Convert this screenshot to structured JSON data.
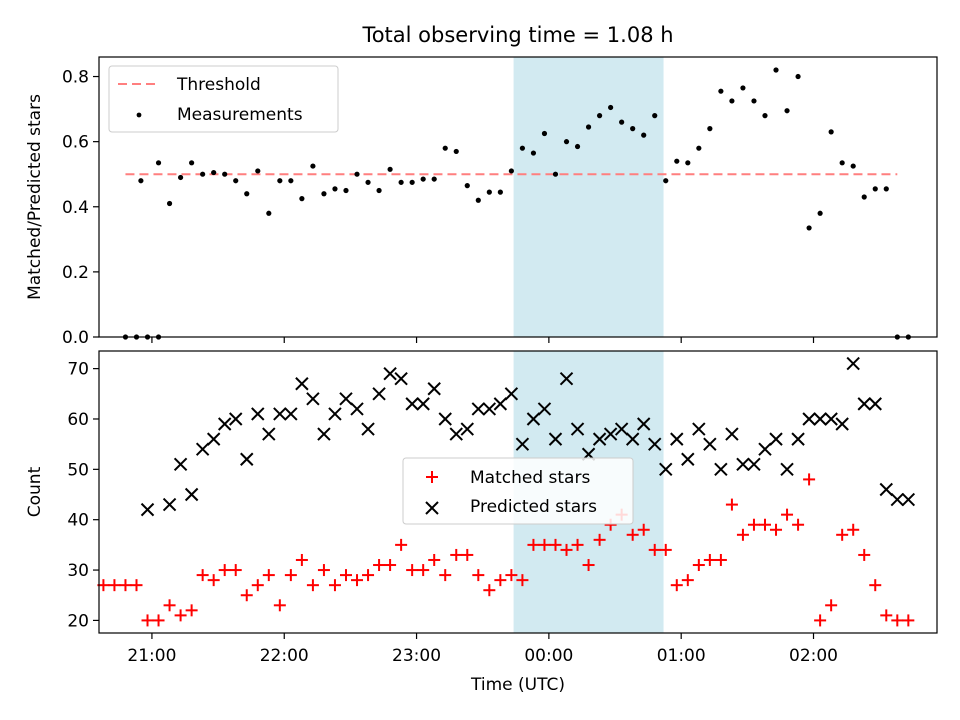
{
  "title": "Total observing time = 1.08 h",
  "chart_data": [
    {
      "type": "scatter",
      "panel": "top",
      "xlabel": "",
      "ylabel": "Matched/Predicted stars",
      "xlim": [
        "20:36",
        "02:56"
      ],
      "ylim": [
        0,
        0.86
      ],
      "yticks": [
        0.0,
        0.2,
        0.4,
        0.6,
        0.8
      ],
      "ytick_labels": [
        "0.0",
        "0.2",
        "0.4",
        "0.6",
        "0.8"
      ],
      "grid": false,
      "legend_position": "top-left",
      "legend": [
        {
          "label": "Threshold",
          "style": "dashed-line",
          "color": "#ff7f7f"
        },
        {
          "label": "Measurements",
          "style": "dot",
          "color": "#000000"
        }
      ],
      "highlight_span": {
        "x": [
          "23:44",
          "00:52"
        ],
        "color": "#add8e6"
      },
      "threshold": {
        "name": "Threshold",
        "x": [
          "20:48",
          "02:38"
        ],
        "y": 0.5
      },
      "series": [
        {
          "name": "Measurements",
          "x": [
            "20:48",
            "20:53",
            "20:58",
            "21:03",
            "20:55",
            "21:03",
            "21:08",
            "21:13",
            "21:18",
            "21:23",
            "21:28",
            "21:33",
            "21:38",
            "21:43",
            "21:48",
            "21:53",
            "21:58",
            "22:03",
            "22:08",
            "22:13",
            "22:18",
            "22:23",
            "22:28",
            "22:33",
            "22:38",
            "22:43",
            "22:48",
            "22:53",
            "22:58",
            "23:03",
            "23:08",
            "23:13",
            "23:18",
            "23:23",
            "23:28",
            "23:33",
            "23:38",
            "23:43",
            "23:48",
            "23:53",
            "23:58",
            "00:03",
            "00:08",
            "00:13",
            "00:18",
            "00:23",
            "00:28",
            "00:33",
            "00:38",
            "00:43",
            "00:48",
            "00:53",
            "00:58",
            "01:03",
            "01:08",
            "01:13",
            "01:18",
            "01:23",
            "01:28",
            "01:33",
            "01:38",
            "01:43",
            "01:48",
            "01:53",
            "01:58",
            "02:03",
            "02:08",
            "02:13",
            "02:18",
            "02:23",
            "02:28",
            "02:33",
            "02:38",
            "02:43"
          ],
          "y": [
            0.0,
            0.0,
            0.0,
            0.0,
            0.48,
            0.535,
            0.41,
            0.49,
            0.535,
            0.5,
            0.505,
            0.5,
            0.48,
            0.44,
            0.51,
            0.38,
            0.48,
            0.48,
            0.425,
            0.525,
            0.44,
            0.455,
            0.45,
            0.5,
            0.475,
            0.45,
            0.515,
            0.475,
            0.475,
            0.485,
            0.485,
            0.58,
            0.57,
            0.465,
            0.42,
            0.445,
            0.445,
            0.51,
            0.58,
            0.565,
            0.625,
            0.5,
            0.6,
            0.585,
            0.645,
            0.68,
            0.705,
            0.66,
            0.64,
            0.62,
            0.68,
            0.48,
            0.54,
            0.535,
            0.58,
            0.64,
            0.755,
            0.725,
            0.765,
            0.725,
            0.68,
            0.82,
            0.695,
            0.8,
            0.335,
            0.38,
            0.63,
            0.535,
            0.525,
            0.43,
            0.455,
            0.455,
            0.0,
            0.0
          ]
        }
      ]
    },
    {
      "type": "scatter",
      "panel": "bottom",
      "xlabel": "Time (UTC)",
      "ylabel": "Count",
      "xlim": [
        "20:36",
        "02:56"
      ],
      "ylim": [
        17.5,
        73.5
      ],
      "yticks": [
        20,
        30,
        40,
        50,
        60,
        70
      ],
      "ytick_labels": [
        "20",
        "30",
        "40",
        "50",
        "60",
        "70"
      ],
      "xticks": [
        "21:00",
        "22:00",
        "23:00",
        "00:00",
        "01:00",
        "02:00"
      ],
      "xtick_labels": [
        "21:00",
        "22:00",
        "23:00",
        "00:00",
        "01:00",
        "02:00"
      ],
      "grid": false,
      "legend_position": "center",
      "legend": [
        {
          "label": "Matched stars",
          "style": "plus",
          "color": "#ff0000"
        },
        {
          "label": "Predicted stars",
          "style": "x",
          "color": "#000000"
        }
      ],
      "highlight_span": {
        "x": [
          "23:44",
          "00:52"
        ],
        "color": "#add8e6"
      },
      "series": [
        {
          "name": "Matched stars",
          "x": [
            "20:38",
            "20:43",
            "20:48",
            "20:53",
            "20:58",
            "21:03",
            "21:08",
            "21:13",
            "21:18",
            "21:23",
            "21:28",
            "21:33",
            "21:38",
            "21:43",
            "21:48",
            "21:53",
            "21:58",
            "22:03",
            "22:08",
            "22:13",
            "22:18",
            "22:23",
            "22:28",
            "22:33",
            "22:38",
            "22:43",
            "22:48",
            "22:53",
            "22:58",
            "23:03",
            "23:08",
            "23:13",
            "23:18",
            "23:23",
            "23:28",
            "23:33",
            "23:38",
            "23:43",
            "23:48",
            "23:53",
            "23:58",
            "00:03",
            "00:08",
            "00:13",
            "00:18",
            "00:23",
            "00:28",
            "00:33",
            "00:38",
            "00:43",
            "00:48",
            "00:53",
            "00:58",
            "01:03",
            "01:08",
            "01:13",
            "01:18",
            "01:23",
            "01:28",
            "01:33",
            "01:38",
            "01:43",
            "01:48",
            "01:53",
            "01:58",
            "02:03",
            "02:08",
            "02:13",
            "02:18",
            "02:23",
            "02:28",
            "02:33",
            "02:38",
            "02:43"
          ],
          "y": [
            27,
            27,
            27,
            27,
            20,
            20,
            23,
            21,
            22,
            29,
            28,
            30,
            30,
            25,
            27,
            29,
            23,
            29,
            32,
            27,
            30,
            27,
            29,
            28,
            29,
            31,
            31,
            35,
            30,
            30,
            32,
            29,
            33,
            33,
            29,
            26,
            28,
            29,
            28,
            35,
            35,
            35,
            34,
            35,
            31,
            36,
            39,
            41,
            37,
            38,
            34,
            34,
            27,
            28,
            31,
            32,
            32,
            43,
            37,
            39,
            39,
            38,
            41,
            39,
            48,
            20,
            23,
            37,
            38,
            33,
            27,
            21,
            20,
            20
          ]
        },
        {
          "name": "Predicted stars",
          "x": [
            "20:58",
            "21:08",
            "21:13",
            "21:18",
            "21:23",
            "21:28",
            "21:33",
            "21:38",
            "21:43",
            "21:48",
            "21:53",
            "21:58",
            "22:03",
            "22:08",
            "22:13",
            "22:18",
            "22:23",
            "22:28",
            "22:33",
            "22:38",
            "22:43",
            "22:48",
            "22:53",
            "22:58",
            "23:03",
            "23:08",
            "23:13",
            "23:18",
            "23:23",
            "23:28",
            "23:33",
            "23:38",
            "23:43",
            "23:48",
            "23:53",
            "23:58",
            "00:03",
            "00:08",
            "00:13",
            "00:18",
            "00:23",
            "00:28",
            "00:33",
            "00:38",
            "00:43",
            "00:48",
            "00:53",
            "00:58",
            "01:03",
            "01:08",
            "01:13",
            "01:18",
            "01:23",
            "01:28",
            "01:33",
            "01:38",
            "01:43",
            "01:48",
            "01:53",
            "01:58",
            "02:03",
            "02:08",
            "02:13",
            "02:18",
            "02:23",
            "02:28",
            "02:33",
            "02:38",
            "02:43"
          ],
          "y": [
            42,
            43,
            51,
            45,
            54,
            56,
            59,
            60,
            52,
            61,
            57,
            61,
            61,
            67,
            64,
            57,
            61,
            64,
            62,
            58,
            65,
            69,
            68,
            63,
            63,
            66,
            60,
            57,
            58,
            62,
            62,
            63,
            65,
            55,
            60,
            62,
            56,
            68,
            58,
            53,
            56,
            57,
            58,
            56,
            59,
            55,
            50,
            56,
            52,
            58,
            55,
            50,
            57,
            51,
            51,
            54,
            56,
            50,
            56,
            60,
            60,
            60,
            59,
            71,
            63,
            63,
            46,
            44,
            44
          ]
        }
      ]
    }
  ]
}
